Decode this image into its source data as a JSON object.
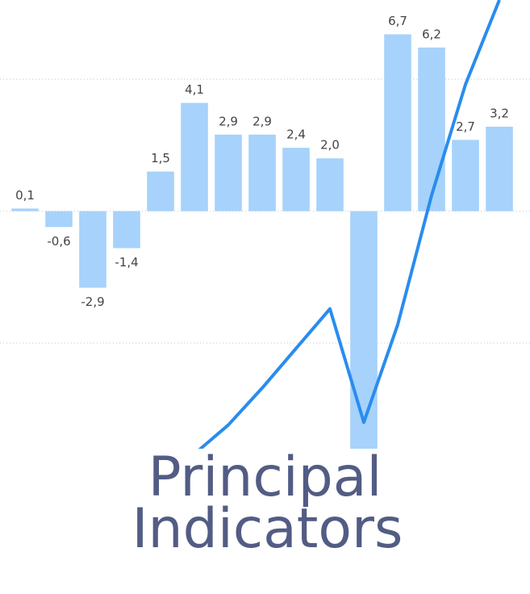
{
  "chart_data": {
    "type": "bar",
    "title": "Principal Indicators",
    "categories": [
      null,
      null,
      null,
      null,
      null,
      null,
      null,
      null,
      null,
      null,
      null,
      null,
      null,
      null,
      null
    ],
    "series": [
      {
        "name": null,
        "type": "bar",
        "color": "#a6d2fb",
        "values": [
          0.1,
          -0.6,
          -2.9,
          -1.4,
          1.5,
          4.1,
          2.9,
          2.9,
          2.4,
          2.0,
          -9.0,
          6.7,
          6.2,
          2.7,
          3.2
        ],
        "value_labels": [
          "0,1",
          "-0,6",
          "-2,9",
          "-1,4",
          "1,5",
          "4,1",
          "2,9",
          "2,9",
          "2,4",
          "2,0",
          null,
          "6,7",
          "6,2",
          "2,7",
          "3,2"
        ]
      },
      {
        "name": null,
        "type": "line",
        "color": "#2a8cee",
        "values": [
          null,
          null,
          null,
          null,
          null,
          -9.2,
          -8.1,
          -6.7,
          -5.2,
          -3.7,
          -8.0,
          -4.3,
          0.6,
          4.8,
          8.0
        ]
      }
    ],
    "ylim": [
      -9,
      8
    ],
    "yticks": [
      -5,
      0,
      5
    ],
    "grid": true
  }
}
